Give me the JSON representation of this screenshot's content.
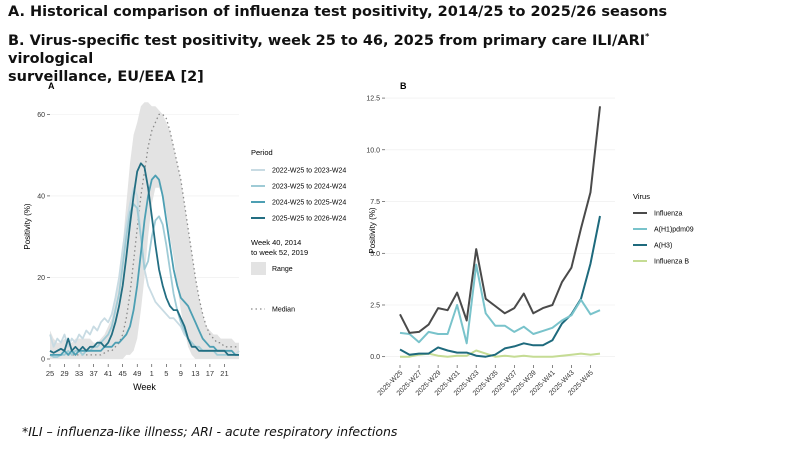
{
  "header": {
    "title_a": "A. Historical comparison of influenza test positivity, 2014/25 to 2025/26 seasons",
    "title_b_main": "B. Virus-specific test positivity, week 25 to 46, 2025 from primary care ILI/ARI",
    "title_b_sup": "*",
    "title_b_rest": " virological",
    "title_b_line2": "surveillance, EU/EEA [2]"
  },
  "footnote": "*ILI – influenza-like illness; ARI - acute respiratory infections",
  "chart_data": [
    {
      "type": "line",
      "panel_label": "A",
      "xlabel": "Week",
      "ylabel": "Positivity (%)",
      "ylim": [
        0,
        65
      ],
      "y_ticks": [
        0,
        20,
        40,
        60
      ],
      "x_tick_labels": [
        "25",
        "29",
        "33",
        "37",
        "41",
        "45",
        "49",
        "1",
        "5",
        "9",
        "13",
        "17",
        "21"
      ],
      "x_count": 53,
      "legend_title": "Period",
      "legend_position": "right",
      "range_label": "Week 40, 2014\nto week 52, 2019",
      "range_legend": "Range",
      "median_legend": "Median",
      "colors": {
        "range": "#e3e3e3",
        "median": "#8a8a8a",
        "s2022": "#c8dbe3",
        "s2023": "#9fcbd6",
        "s2024": "#4d9fb3",
        "s2025": "#236e82"
      },
      "range_band": {
        "lower": [
          0,
          0,
          0,
          0,
          0,
          0,
          0,
          0,
          0,
          0,
          0,
          0,
          0,
          0,
          0,
          0,
          0,
          0,
          0,
          0,
          0,
          1,
          1,
          2,
          5,
          12,
          20,
          30,
          38,
          42,
          42,
          40,
          36,
          30,
          25,
          18,
          12,
          7,
          3,
          1,
          0,
          0,
          0,
          0,
          0,
          0,
          0,
          0,
          0,
          0,
          0,
          0,
          0
        ],
        "upper": [
          7,
          5,
          4,
          4,
          5,
          4,
          4,
          5,
          5,
          5,
          5,
          5,
          4,
          4,
          5,
          6,
          8,
          10,
          14,
          20,
          28,
          38,
          48,
          55,
          58,
          62,
          63,
          63,
          62,
          62,
          61,
          60,
          58,
          56,
          52,
          48,
          44,
          38,
          32,
          26,
          20,
          15,
          11,
          8,
          7,
          6,
          6,
          5,
          5,
          5,
          5,
          4,
          4
        ]
      },
      "series": [
        {
          "name": "Median",
          "color_key": "median",
          "dashed": true,
          "values": [
            1,
            1,
            1,
            1,
            1,
            1,
            1,
            1,
            1,
            1,
            1,
            1,
            1,
            1,
            1,
            1.5,
            2,
            2,
            3,
            4,
            6,
            10,
            16,
            24,
            32,
            40,
            46,
            52,
            56,
            58,
            60,
            60,
            59,
            56,
            52,
            48,
            44,
            38,
            32,
            26,
            20,
            15,
            11,
            8,
            6,
            5,
            4,
            4,
            3,
            3,
            3,
            3,
            3
          ]
        },
        {
          "name": "2022-W25 to 2023-W24",
          "color_key": "s2022",
          "values": [
            6,
            3,
            5,
            4,
            6,
            3,
            5,
            4,
            6,
            5,
            7,
            6,
            8,
            7,
            9,
            10,
            9,
            11,
            15,
            20,
            27,
            33,
            38,
            42,
            40,
            30,
            22,
            18,
            16,
            14,
            13,
            12,
            11,
            10,
            10,
            9,
            8,
            6,
            5,
            4,
            3,
            3,
            2,
            2,
            2,
            2,
            2,
            2,
            2,
            2,
            1,
            1,
            2
          ]
        },
        {
          "name": "2023-W25 to 2024-W24",
          "color_key": "s2023",
          "values": [
            1,
            0.5,
            0.5,
            1,
            1,
            2,
            1,
            2,
            2,
            1,
            2,
            2,
            3,
            3,
            4,
            5,
            6,
            8,
            12,
            16,
            23,
            30,
            36,
            38,
            37,
            30,
            22,
            24,
            30,
            34,
            35,
            33,
            28,
            22,
            16,
            12,
            9,
            7,
            5,
            4,
            3,
            3,
            2,
            2,
            2,
            2,
            1,
            1,
            1,
            1,
            1,
            1,
            1
          ]
        },
        {
          "name": "2024-W25 to 2025-W24",
          "color_key": "s2024",
          "values": [
            1,
            1,
            1,
            1,
            2,
            1,
            2,
            1,
            2,
            2,
            2,
            2,
            2,
            2,
            2,
            3,
            3,
            3,
            4,
            4,
            5,
            6,
            8,
            12,
            18,
            26,
            34,
            40,
            44,
            45,
            44,
            40,
            34,
            28,
            22,
            18,
            15,
            14,
            13,
            11,
            9,
            7,
            5,
            4,
            3,
            3,
            2,
            2,
            2,
            2,
            2,
            1,
            1
          ]
        },
        {
          "name": "2025-W25 to 2026-W24",
          "color_key": "s2025",
          "values": [
            2,
            1.5,
            2,
            2.5,
            2,
            5,
            2,
            3,
            2,
            3,
            2,
            3,
            3,
            4,
            4,
            3,
            4,
            6,
            9,
            13,
            18,
            25,
            33,
            40,
            46,
            48,
            47,
            42,
            35,
            28,
            22,
            18,
            15,
            13,
            12,
            12,
            10,
            8,
            5,
            3,
            3,
            2,
            2,
            2,
            2,
            2,
            2,
            2,
            2,
            1,
            1,
            1,
            1
          ]
        }
      ]
    },
    {
      "type": "line",
      "panel_label": "B",
      "xlabel": "",
      "ylabel": "Positivity (%)",
      "ylim": [
        -0.4,
        12.6
      ],
      "y_ticks": [
        0.0,
        2.5,
        5.0,
        7.5,
        10.0,
        12.5
      ],
      "y_tick_labels": [
        "0.0",
        "2.5",
        "5.0",
        "7.5",
        "10.0",
        "12.5"
      ],
      "x_tick_labels": [
        "2025-W25",
        "2025-W27",
        "2025-W29",
        "2025-W31",
        "2025-W33",
        "2025-W35",
        "2025-W37",
        "2025-W39",
        "2025-W41",
        "2025-W43",
        "2025-W45"
      ],
      "x_count": 22,
      "legend_title": "Virus",
      "legend_position": "right",
      "series": [
        {
          "name": "Influenza",
          "color": "#4a4a4a",
          "values": [
            2.05,
            1.15,
            1.2,
            1.55,
            2.35,
            2.25,
            3.1,
            1.75,
            5.2,
            2.8,
            2.45,
            2.1,
            2.35,
            3.05,
            2.1,
            2.35,
            2.5,
            3.6,
            4.3,
            6.2,
            7.95,
            12.1
          ]
        },
        {
          "name": "A(H1)pdm09",
          "color": "#79c3cb",
          "values": [
            1.15,
            1.1,
            0.7,
            1.2,
            1.1,
            1.1,
            2.5,
            0.65,
            4.45,
            2.1,
            1.5,
            1.5,
            1.2,
            1.45,
            1.1,
            1.25,
            1.4,
            1.75,
            2.0,
            2.75,
            2.05,
            2.25
          ]
        },
        {
          "name": "A(H3)",
          "color": "#1e6a7d",
          "values": [
            0.35,
            0.1,
            0.15,
            0.15,
            0.45,
            0.3,
            0.2,
            0.2,
            0.05,
            0.0,
            0.1,
            0.4,
            0.5,
            0.65,
            0.55,
            0.55,
            0.8,
            1.6,
            2.05,
            2.8,
            4.5,
            6.8
          ]
        },
        {
          "name": "Influenza B",
          "color": "#c5dc94",
          "values": [
            0.0,
            0.0,
            0.1,
            0.15,
            0.05,
            0.0,
            0.05,
            0.05,
            0.3,
            0.15,
            0.0,
            0.05,
            0.0,
            0.05,
            0.0,
            0.0,
            0.0,
            0.05,
            0.1,
            0.15,
            0.1,
            0.15
          ]
        }
      ]
    }
  ]
}
